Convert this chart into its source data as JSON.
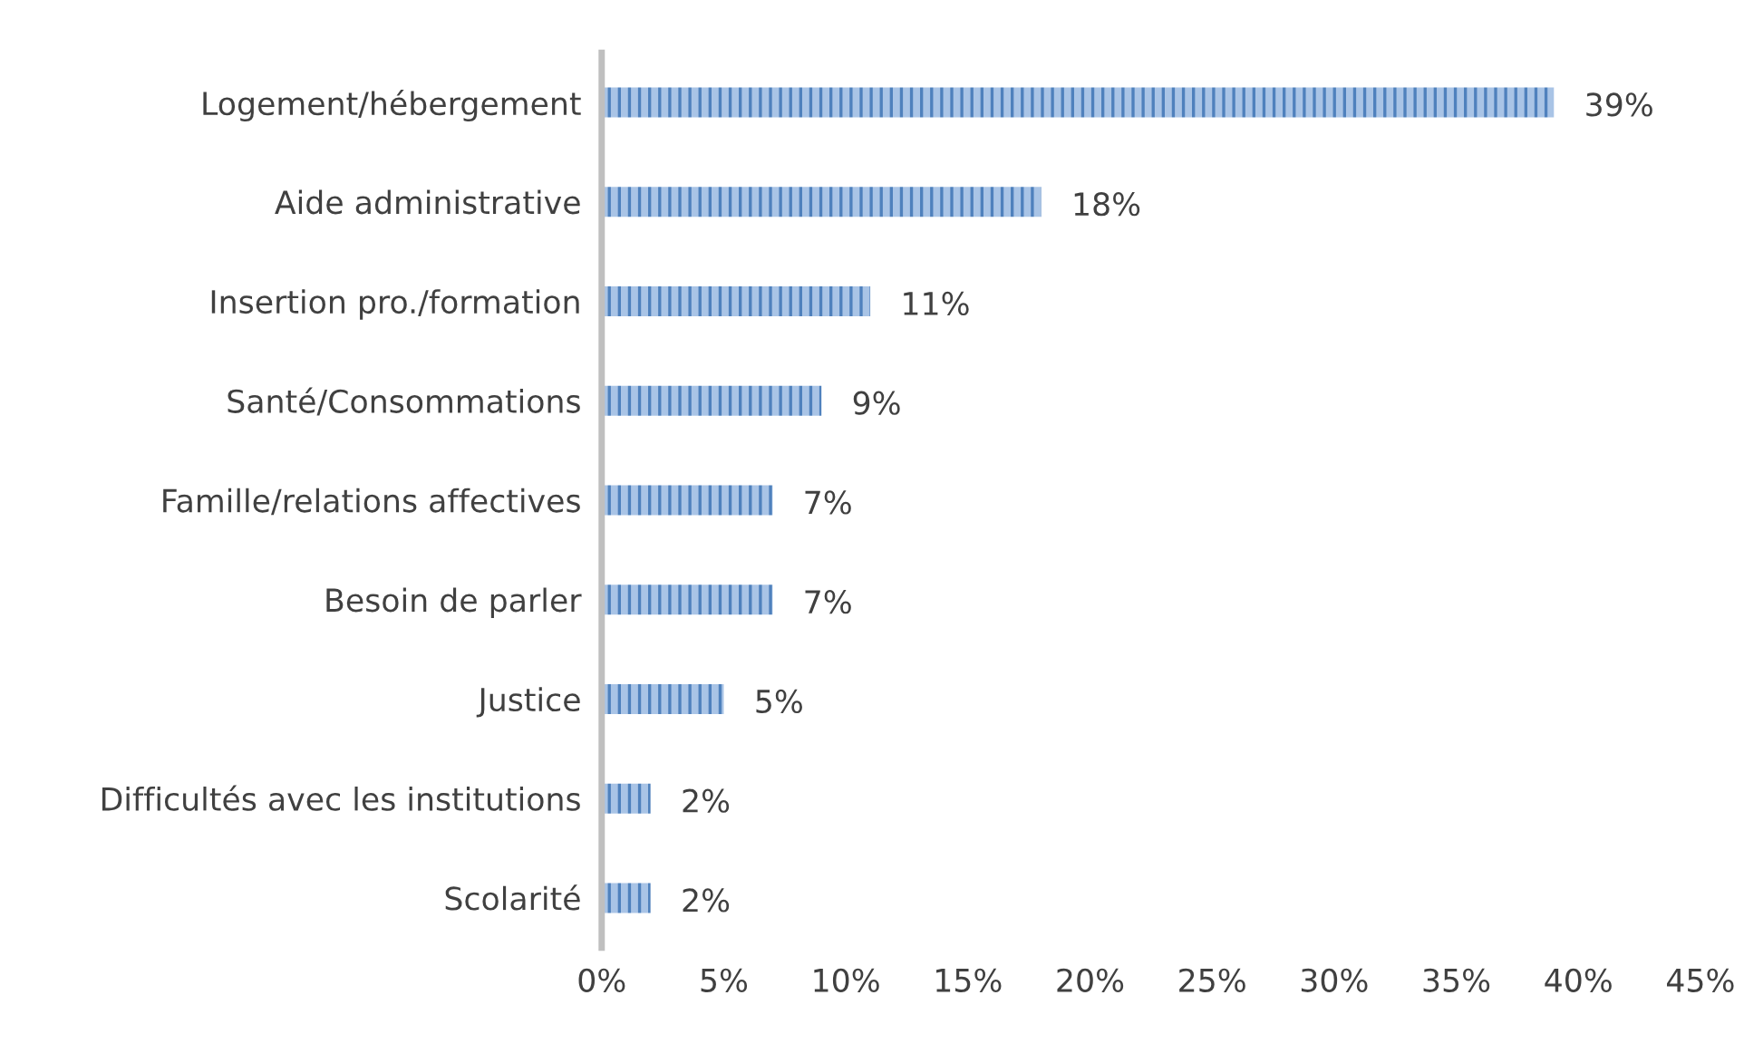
{
  "chart_data": {
    "type": "bar",
    "orientation": "horizontal",
    "categories": [
      "Logement/hébergement",
      "Aide administrative",
      "Insertion pro./formation",
      "Santé/Consommations",
      "Famille/relations affectives",
      "Besoin de parler",
      "Justice",
      "Difficultés avec les institutions",
      "Scolarité"
    ],
    "values": [
      39,
      18,
      11,
      9,
      7,
      7,
      5,
      2,
      2
    ],
    "value_labels": [
      "39%",
      "18%",
      "11%",
      "9%",
      "7%",
      "7%",
      "5%",
      "2%",
      "2%"
    ],
    "color": "#4f81bd",
    "xlim": [
      0,
      45
    ],
    "xticks": [
      {
        "value": 0,
        "label": "0%"
      },
      {
        "value": 5,
        "label": "5%"
      },
      {
        "value": 10,
        "label": "10%"
      },
      {
        "value": 15,
        "label": "15%"
      },
      {
        "value": 20,
        "label": "20%"
      },
      {
        "value": 25,
        "label": "25%"
      },
      {
        "value": 30,
        "label": "30%"
      },
      {
        "value": 35,
        "label": "35%"
      },
      {
        "value": 40,
        "label": "40%"
      },
      {
        "value": 45,
        "label": "45%"
      }
    ],
    "grid": false,
    "legend": false
  }
}
